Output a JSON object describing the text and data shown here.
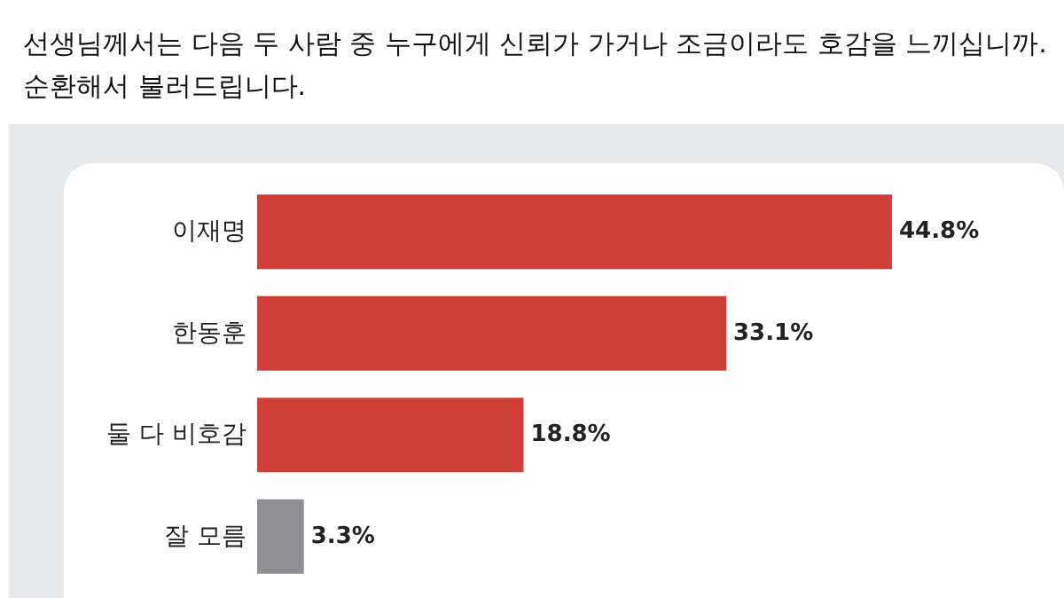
{
  "chart_data": {
    "type": "bar",
    "orientation": "horizontal",
    "title": "선생님께서는 다음 두 사람 중 누구에게 신뢰가 가거나 조금이라도 호감을 느끼십니까.",
    "subtitle": "순환해서 불러드립니다.",
    "categories": [
      "이재명",
      "한동훈",
      "둘 다 비호감",
      "잘 모름"
    ],
    "values": [
      44.8,
      33.1,
      18.8,
      3.3
    ],
    "value_labels": [
      "44.8%",
      "33.1%",
      "18.8%",
      "3.3%"
    ],
    "colors": [
      "#cf3f37",
      "#cf3f37",
      "#cf3f37",
      "#909094"
    ]
  }
}
